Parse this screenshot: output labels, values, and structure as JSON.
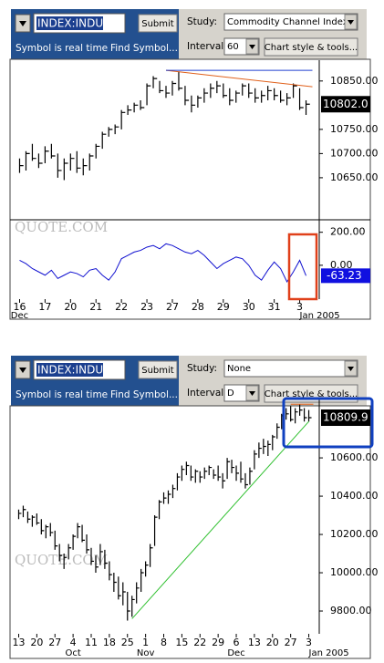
{
  "panels": [
    {
      "toolbar": {
        "symbol": "INDEX:INDU",
        "submit": "Submit",
        "realtime": "Symbol is real time",
        "find": "Find Symbol...",
        "study_label": "Study:",
        "study": "Commodity Channel Index",
        "interval_label": "Interval:",
        "interval": "60",
        "tools": "Chart style & tools..."
      },
      "chart": {
        "watermark": "QUOTE.COM",
        "ylim": [
          10565,
          10893
        ],
        "yticks": [
          {
            "value": 10650,
            "label": "10650.00"
          },
          {
            "value": 10700,
            "label": "10700.00"
          },
          {
            "value": 10750,
            "label": "10750.00"
          },
          {
            "value": 10850,
            "label": "10850.00"
          }
        ],
        "last": {
          "value": 10802,
          "label": "10802.0"
        },
        "periods": [
          {
            "label": "16",
            "month": "Dec",
            "bars": [
              [
                10690,
                10660,
                10675
              ],
              [
                10705,
                10665,
                10700
              ],
              [
                10720,
                10685,
                10690
              ],
              [
                10700,
                10670,
                10680
              ]
            ]
          },
          {
            "label": "17",
            "bars": [
              [
                10715,
                10680,
                10705
              ],
              [
                10720,
                10690,
                10695
              ],
              [
                10700,
                10650,
                10665
              ],
              [
                10690,
                10645,
                10680
              ]
            ]
          },
          {
            "label": "20",
            "bars": [
              [
                10700,
                10665,
                10690
              ],
              [
                10705,
                10660,
                10670
              ],
              [
                10690,
                10655,
                10675
              ],
              [
                10700,
                10665,
                10695
              ]
            ]
          },
          {
            "label": "21",
            "bars": [
              [
                10720,
                10690,
                10715
              ],
              [
                10745,
                10710,
                10740
              ],
              [
                10755,
                10735,
                10750
              ],
              [
                10760,
                10740,
                10755
              ]
            ]
          },
          {
            "label": "22",
            "bars": [
              [
                10790,
                10750,
                10785
              ],
              [
                10800,
                10780,
                10790
              ],
              [
                10805,
                10785,
                10800
              ],
              [
                10810,
                10790,
                10795
              ]
            ]
          },
          {
            "label": "23",
            "bars": [
              [
                10845,
                10800,
                10840
              ],
              [
                10860,
                10835,
                10855
              ],
              [
                10850,
                10825,
                10830
              ],
              [
                10840,
                10815,
                10825
              ]
            ]
          },
          {
            "label": "27",
            "bars": [
              [
                10850,
                10820,
                10845
              ],
              [
                10870,
                10830,
                10835
              ],
              [
                10840,
                10800,
                10810
              ],
              [
                10820,
                10785,
                10800
              ]
            ]
          },
          {
            "label": "28",
            "bars": [
              [
                10820,
                10795,
                10815
              ],
              [
                10835,
                10805,
                10825
              ],
              [
                10845,
                10815,
                10835
              ],
              [
                10850,
                10825,
                10840
              ]
            ]
          },
          {
            "label": "29",
            "bars": [
              [
                10845,
                10815,
                10820
              ],
              [
                10835,
                10800,
                10810
              ],
              [
                10830,
                10805,
                10825
              ],
              [
                10845,
                10820,
                10840
              ]
            ]
          },
          {
            "label": "30",
            "bars": [
              [
                10845,
                10815,
                10825
              ],
              [
                10835,
                10805,
                10815
              ],
              [
                10830,
                10805,
                10820
              ],
              [
                10840,
                10810,
                10830
              ]
            ]
          },
          {
            "label": "31",
            "bars": [
              [
                10835,
                10810,
                10820
              ],
              [
                10830,
                10805,
                10810
              ],
              [
                10825,
                10800,
                10815
              ],
              [
                10845,
                10815,
                10840
              ]
            ]
          },
          {
            "label": "3",
            "month": "Jan 2005",
            "bars": [
              [
                10835,
                10790,
                10795
              ],
              [
                10810,
                10780,
                10802
              ]
            ]
          }
        ],
        "trendlines": [
          {
            "color": "#e0601a",
            "from": [
              23,
              10872
            ],
            "to": [
              46,
              10838
            ]
          },
          {
            "color": "#2040d0",
            "from": [
              23,
              10872
            ],
            "to": [
              46,
              10872
            ]
          }
        ],
        "indicator": {
          "ylim": [
            -205,
            270
          ],
          "color": "#1010d0",
          "yticks": [
            {
              "value": 0,
              "label": "0.00"
            },
            {
              "value": 200,
              "label": "200.00"
            }
          ],
          "last": {
            "value": -63.23,
            "label": "-63.23"
          },
          "values": [
            30,
            10,
            -20,
            -40,
            -60,
            -30,
            -80,
            -60,
            -40,
            -50,
            -70,
            -30,
            -20,
            -60,
            -90,
            -40,
            40,
            60,
            80,
            90,
            110,
            120,
            100,
            130,
            120,
            100,
            80,
            70,
            90,
            60,
            20,
            -20,
            10,
            30,
            50,
            40,
            0,
            -60,
            -90,
            -30,
            20,
            -20,
            -100,
            -40,
            30,
            -63.23
          ]
        }
      }
    },
    {
      "toolbar": {
        "symbol": "INDEX:INDU",
        "submit": "Submit",
        "realtime": "Symbol is real time",
        "find": "Find Symbol...",
        "study_label": "Study:",
        "study": "None",
        "interval_label": "Interval:",
        "interval": "D",
        "tools": "Chart style & tools..."
      },
      "chart": {
        "watermark": "QUOTE.COM",
        "ylim": [
          9681,
          10910
        ],
        "yticks": [
          {
            "value": 9800,
            "label": "9800.00"
          },
          {
            "value": 10000,
            "label": "10000.00"
          },
          {
            "value": 10200,
            "label": "10200.00"
          },
          {
            "value": 10400,
            "label": "10400.00"
          },
          {
            "value": 10600,
            "label": "10600.00"
          }
        ],
        "last": {
          "value": 10809.9,
          "label": "10809.9"
        },
        "periods": [
          {
            "label": "13",
            "bars": [
              [
                10330,
                10280,
                10310
              ],
              [
                10350,
                10290,
                10330
              ],
              [
                10320,
                10260,
                10280
              ],
              [
                10300,
                10240,
                10290
              ]
            ]
          },
          {
            "label": "20",
            "bars": [
              [
                10310,
                10250,
                10260
              ],
              [
                10280,
                10200,
                10220
              ],
              [
                10250,
                10180,
                10240
              ],
              [
                10260,
                10190,
                10210
              ]
            ]
          },
          {
            "label": "27",
            "bars": [
              [
                10220,
                10120,
                10140
              ],
              [
                10150,
                10060,
                10090
              ],
              [
                10100,
                10020,
                10080
              ],
              [
                10150,
                10070,
                10130
              ]
            ]
          },
          {
            "label": "4",
            "month": "Oct",
            "bars": [
              [
                10200,
                10120,
                10190
              ],
              [
                10260,
                10180,
                10240
              ],
              [
                10250,
                10160,
                10170
              ],
              [
                10200,
                10100,
                10120
              ]
            ]
          },
          {
            "label": "11",
            "bars": [
              [
                10130,
                10040,
                10060
              ],
              [
                10090,
                10000,
                10030
              ],
              [
                10150,
                10040,
                10110
              ],
              [
                10120,
                10020,
                10050
              ]
            ]
          },
          {
            "label": "18",
            "bars": [
              [
                10060,
                9960,
                9990
              ],
              [
                10000,
                9900,
                9950
              ],
              [
                9980,
                9860,
                9880
              ],
              [
                9950,
                9830,
                9900
              ]
            ]
          },
          {
            "label": "25",
            "bars": [
              [
                9900,
                9750,
                9800
              ],
              [
                9880,
                9770,
                9860
              ],
              [
                9950,
                9840,
                9920
              ],
              [
                10020,
                9900,
                10000
              ]
            ]
          },
          {
            "label": "1",
            "month": "Nov",
            "bars": [
              [
                10060,
                9980,
                10040
              ],
              [
                10150,
                10030,
                10130
              ],
              [
                10300,
                10140,
                10290
              ],
              [
                10380,
                10280,
                10370
              ]
            ]
          },
          {
            "label": "8",
            "bars": [
              [
                10420,
                10360,
                10390
              ],
              [
                10430,
                10360,
                10410
              ],
              [
                10460,
                10390,
                10440
              ],
              [
                10520,
                10430,
                10500
              ]
            ]
          },
          {
            "label": "15",
            "bars": [
              [
                10560,
                10480,
                10540
              ],
              [
                10580,
                10510,
                10560
              ],
              [
                10560,
                10480,
                10500
              ],
              [
                10540,
                10470,
                10530
              ]
            ]
          },
          {
            "label": "22",
            "bars": [
              [
                10530,
                10470,
                10500
              ],
              [
                10550,
                10490,
                10530
              ],
              [
                10560,
                10510,
                10550
              ],
              [
                10540,
                10490,
                10510
              ]
            ]
          },
          {
            "label": "29",
            "bars": [
              [
                10560,
                10480,
                10500
              ],
              [
                10520,
                10440,
                10480
              ],
              [
                10600,
                10490,
                10580
              ],
              [
                10590,
                10520,
                10550
              ]
            ]
          },
          {
            "label": "6",
            "month": "Dec",
            "bars": [
              [
                10560,
                10480,
                10520
              ],
              [
                10580,
                10470,
                10490
              ],
              [
                10520,
                10440,
                10460
              ],
              [
                10550,
                10460,
                10530
              ]
            ]
          },
          {
            "label": "13",
            "bars": [
              [
                10640,
                10540,
                10620
              ],
              [
                10680,
                10600,
                10650
              ],
              [
                10700,
                10620,
                10660
              ],
              [
                10690,
                10610,
                10670
              ]
            ]
          },
          {
            "label": "20",
            "bars": [
              [
                10720,
                10640,
                10710
              ],
              [
                10780,
                10700,
                10760
              ],
              [
                10830,
                10750,
                10820
              ],
              [
                10860,
                10800,
                10830
              ]
            ]
          },
          {
            "label": "27",
            "bars": [
              [
                10870,
                10790,
                10800
              ],
              [
                10860,
                10780,
                10840
              ],
              [
                10880,
                10820,
                10850
              ],
              [
                10860,
                10790,
                10810
              ]
            ]
          },
          {
            "label": "3",
            "month": "Jan 2005",
            "bars": [
              [
                10850,
                10790,
                10809.9
              ]
            ]
          }
        ],
        "trendlines": [
          {
            "color": "#30c030",
            "from": [
              25,
              9760
            ],
            "to": [
              64,
              10790
            ]
          },
          {
            "color": "#e0601a",
            "from": [
              60,
              10880
            ],
            "to": [
              65,
              10880
            ]
          }
        ]
      }
    }
  ]
}
